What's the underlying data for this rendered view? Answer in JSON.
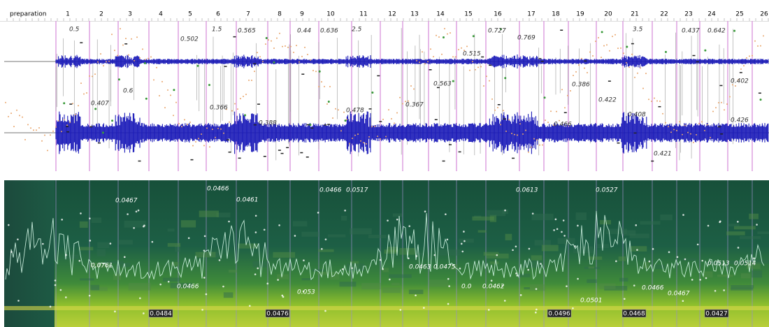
{
  "ruler": {
    "labels": [
      "preparation",
      "1",
      "2",
      "3",
      "4",
      "5",
      "6",
      "7",
      "8",
      "9",
      "10",
      "11",
      "12",
      "13",
      "14",
      "15",
      "16",
      "17",
      "18",
      "19",
      "20",
      "21",
      "22",
      "23",
      "24",
      "25",
      "26"
    ]
  },
  "waveform_pane": {
    "labels": [
      "0.5",
      "0.502",
      "1.5",
      "0.565",
      "0.44",
      "0.636",
      "2.5",
      "0.727",
      "0.769",
      "3.5",
      "0.437",
      "0.642",
      "0.515",
      "0.407",
      "0.6",
      "0.366",
      "0.563",
      "0.386",
      "0.422",
      "0.367",
      "0.408",
      "0.402",
      "0.421",
      "0.426",
      "0.466",
      "0.388",
      "0.478"
    ]
  },
  "spectrogram_pane": {
    "labels": [
      "0.0467",
      "0.0466",
      "0.0461",
      "0.0466",
      "0.0517",
      "0.0613",
      "0.0527",
      "0.0761",
      "0.0466",
      "0.053",
      "0.0463",
      "0.0475",
      "0.0",
      "0.0462",
      "0.0501",
      "0.0466",
      "0.0467",
      "0.0513",
      "0.0514"
    ],
    "boxed_labels": [
      "0.0484",
      "0.0476",
      "0.0496",
      "0.0468",
      "0.0427"
    ]
  }
}
